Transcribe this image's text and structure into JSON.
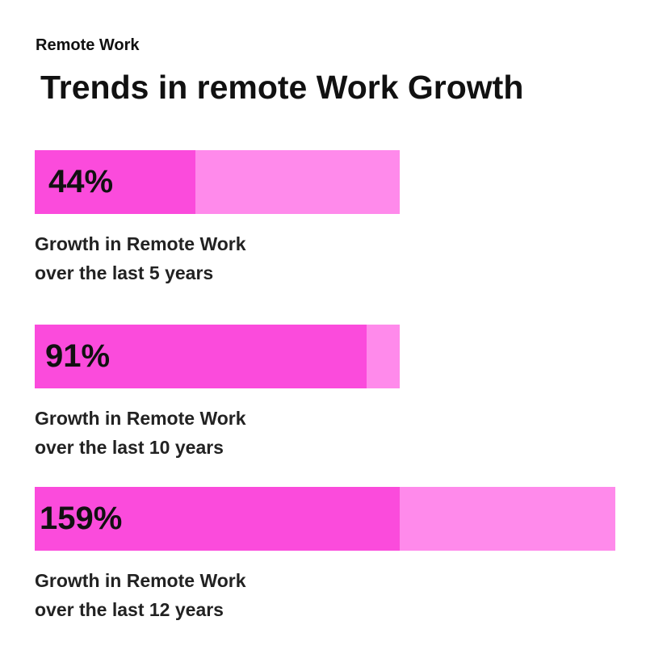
{
  "header": {
    "eyebrow": "Remote Work",
    "title": "Trends in remote Work Growth"
  },
  "colors": {
    "track": "#FF8AEB",
    "fill": "#FB4BDC",
    "text": "#111111",
    "background": "#FFFFFF"
  },
  "chart_data": {
    "type": "bar",
    "orientation": "horizontal",
    "unit": "%",
    "title": "Trends in remote Work Growth",
    "grid": false,
    "legend": "none",
    "categories": [
      "Growth in Remote Work over the last 5 years",
      "Growth in Remote Work over the last 10 years",
      "Growth in Remote Work over the last 12 years"
    ],
    "values": [
      44,
      91,
      159
    ],
    "value_labels": [
      "44%",
      "91%",
      "159%"
    ],
    "caption_lines": [
      [
        "Growth in Remote Work",
        "over the last 5 years"
      ],
      [
        "Growth in Remote Work",
        "over the last 10 years"
      ],
      [
        "Growth in Remote Work",
        "over the last 12 years"
      ]
    ],
    "track_max": [
      100,
      100,
      159
    ]
  }
}
